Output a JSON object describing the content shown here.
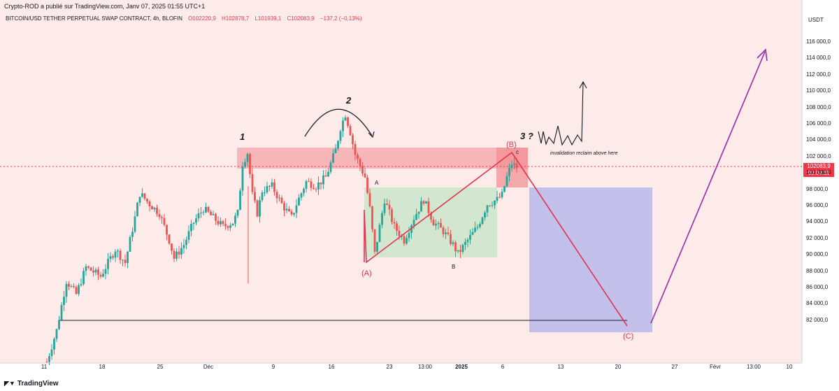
{
  "header": {
    "published_by": "Crypto-ROD a publié sur TradingView.com, Janv 07, 2025 01:55 UTC+1",
    "symbol": "BITCOIN/USD TETHER PERPETUAL SWAP CONTRACT, 4h, BLOFIN",
    "ohlc": {
      "open": "O102220,9",
      "high": "H102878,7",
      "low": "L101939,1",
      "close": "C102083,9",
      "change": "−137,2 (−0,13%)"
    },
    "currency": "USDT"
  },
  "price_tag": {
    "price": "102083,9",
    "countdown": "03:04:11"
  },
  "footer": {
    "logo": "TradingView"
  },
  "colors": {
    "up": "#26a69a",
    "down": "#ef5350",
    "resistance_zone": "#f4a6aa",
    "range_box": "#c8e6c9",
    "target_box": "#b9b8ec",
    "projection_line": "#e0344c",
    "up_arrow": "#9c27b0"
  },
  "annotations": {
    "wave_1": "1",
    "wave_2": "2",
    "wave_3": "3 ?",
    "A_small": "A",
    "B_small": "B",
    "c_small": "c",
    "A_paren": "(A)",
    "B_paren": "(B)",
    "C_paren": "(C)",
    "note": "invalidation reclaim above here"
  },
  "chart_data": {
    "type": "candlestick",
    "y_axis": {
      "range": [
        80500,
        117500
      ],
      "ticks": [
        "116 000,0",
        "114 000,0",
        "112 000,0",
        "110 000,0",
        "108 000,0",
        "106 000,0",
        "104 000,0",
        "102 000,0",
        "100 000,0",
        "98 000,0",
        "96 000,0",
        "94 000,0",
        "92 000,0",
        "90 000,0",
        "88 000,0",
        "86 000,0",
        "84 000,0",
        "82 000,0"
      ]
    },
    "x_axis": {
      "ticks": [
        "11",
        "18",
        "25",
        "Déc",
        "9",
        "16",
        "23",
        "13:00",
        "2025",
        "6",
        "13",
        "20",
        "27",
        "Févr",
        "13:00",
        "10"
      ]
    },
    "price_path": [
      [
        1,
        80500
      ],
      [
        3,
        84000
      ],
      [
        5,
        89500
      ],
      [
        7,
        88000
      ],
      [
        9,
        91000
      ],
      [
        12,
        90000
      ],
      [
        15,
        93000
      ],
      [
        17,
        91500
      ],
      [
        19,
        96500
      ],
      [
        20,
        99200
      ],
      [
        22,
        98000
      ],
      [
        24,
        97000
      ],
      [
        26,
        94000
      ],
      [
        27,
        92000
      ],
      [
        29,
        93500
      ],
      [
        31,
        96000
      ],
      [
        33,
        97500
      ],
      [
        35,
        96500
      ],
      [
        37,
        95500
      ],
      [
        39,
        96000
      ],
      [
        40,
        97000
      ],
      [
        41,
        102500
      ],
      [
        42,
        103700
      ],
      [
        43,
        99000
      ],
      [
        44,
        97000
      ],
      [
        45,
        99500
      ],
      [
        47,
        100000
      ],
      [
        49,
        98000
      ],
      [
        51,
        96500
      ],
      [
        52,
        98000
      ],
      [
        54,
        100500
      ],
      [
        56,
        100000
      ],
      [
        58,
        101000
      ],
      [
        60,
        104000
      ],
      [
        61,
        106500
      ],
      [
        62,
        108000
      ],
      [
        63,
        106000
      ],
      [
        64,
        103500
      ],
      [
        66,
        101000
      ],
      [
        67,
        97500
      ],
      [
        68,
        92500
      ],
      [
        70,
        98500
      ],
      [
        72,
        95500
      ],
      [
        74,
        94000
      ],
      [
        76,
        96500
      ],
      [
        78,
        98500
      ],
      [
        80,
        96000
      ],
      [
        82,
        95000
      ],
      [
        84,
        93500
      ],
      [
        85,
        92500
      ],
      [
        87,
        94000
      ],
      [
        89,
        95500
      ],
      [
        91,
        98000
      ],
      [
        93,
        98500
      ],
      [
        94,
        99000
      ],
      [
        95,
        101000
      ],
      [
        96,
        102500
      ],
      [
        97,
        102100
      ]
    ],
    "zones": [
      {
        "name": "resistance",
        "y": [
          101000,
          104200
        ]
      },
      {
        "name": "range",
        "y": [
          92200,
          99700
        ]
      },
      {
        "name": "target",
        "y": [
          83900,
          99700
        ]
      }
    ],
    "levels": [
      {
        "name": "support-line",
        "y": 85000
      }
    ],
    "labels": [
      "1",
      "2",
      "3 ?",
      "A",
      "B",
      "c",
      "(A)",
      "(B)",
      "(C)",
      "invalidation reclaim above here"
    ],
    "legend": "none",
    "grid": false
  }
}
